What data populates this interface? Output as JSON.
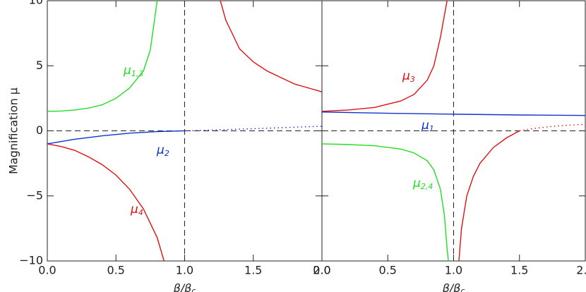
{
  "chart_data": [
    {
      "type": "line",
      "ylabel": "Magnification μ",
      "xlabel": "β/β",
      "xlabel_sub": "c",
      "xlim": [
        0,
        2
      ],
      "ylim": [
        -10,
        10
      ],
      "xticks": [
        {
          "value": 0,
          "label": "0.0"
        },
        {
          "value": 0.5,
          "label": "0.5"
        },
        {
          "value": 1,
          "label": "1.0"
        },
        {
          "value": 1.5,
          "label": "1.5"
        },
        {
          "value": 2,
          "label": "2.0"
        }
      ],
      "yticks": [
        {
          "value": -10,
          "label": "−10"
        },
        {
          "value": -5,
          "label": "−5"
        },
        0,
        5,
        10
      ],
      "reference_lines": {
        "x": 1,
        "y": 0
      },
      "series": [
        {
          "color": "#22dd22",
          "dash": "solid",
          "x": [
            0,
            0.1,
            0.2,
            0.3,
            0.4,
            0.5,
            0.6,
            0.7,
            0.75,
            0.8
          ],
          "values": [
            1.5,
            1.52,
            1.6,
            1.75,
            2.0,
            2.5,
            3.3,
            4.6,
            6.2,
            10
          ]
        },
        {
          "color": "#dd1111",
          "dash": "solid",
          "x": [
            0,
            0.1,
            0.2,
            0.3,
            0.4,
            0.5,
            0.6,
            0.7,
            0.8,
            0.85
          ],
          "values": [
            -1,
            -1.2,
            -1.5,
            -2.0,
            -2.6,
            -3.4,
            -4.5,
            -6.0,
            -8.2,
            -10
          ]
        },
        {
          "color": "#dd1111",
          "dash": "solid",
          "x": [
            1.26,
            1.3,
            1.4,
            1.5,
            1.6,
            1.7,
            1.8,
            1.9,
            2.0
          ],
          "values": [
            10,
            8.5,
            6.3,
            5.3,
            4.6,
            4.1,
            3.6,
            3.3,
            3.0
          ]
        },
        {
          "color": "#1133cc",
          "dash": "solid",
          "x": [
            0,
            0.2,
            0.4,
            0.6,
            0.8,
            1.0
          ],
          "values": [
            -1,
            -0.65,
            -0.38,
            -0.18,
            -0.06,
            0
          ]
        },
        {
          "color": "#1133cc",
          "dash": "dotted",
          "x": [
            1.0,
            1.2,
            1.4,
            1.6,
            1.8,
            2.0
          ],
          "values": [
            0,
            0.06,
            0.13,
            0.2,
            0.28,
            0.35
          ]
        }
      ],
      "annotations": [
        {
          "text": "μ",
          "sub": "1,3",
          "color": "#22dd22"
        },
        {
          "text": "μ",
          "sub": "2",
          "color": "#1133cc"
        },
        {
          "text": "μ",
          "sub": "4",
          "color": "#dd1111"
        }
      ]
    },
    {
      "type": "line",
      "xlabel": "β/β",
      "xlabel_sub": "c",
      "xlim": [
        0,
        2
      ],
      "ylim": [
        -10,
        10
      ],
      "xticks": [
        {
          "value": 0,
          "label": "0.0"
        },
        {
          "value": 0.5,
          "label": "0.5"
        },
        {
          "value": 1,
          "label": "1.0"
        },
        {
          "value": 1.5,
          "label": "1.5"
        },
        {
          "value": 2,
          "label": "2.0"
        }
      ],
      "yticks": [
        -10,
        -5,
        0,
        5,
        10
      ],
      "reference_lines": {
        "x": 1,
        "y": 0
      },
      "series": [
        {
          "color": "#dd1111",
          "dash": "solid",
          "x": [
            0,
            0.2,
            0.4,
            0.6,
            0.7,
            0.8,
            0.85,
            0.9,
            0.95
          ],
          "values": [
            1.5,
            1.6,
            1.8,
            2.3,
            2.8,
            3.9,
            5,
            7.2,
            10
          ]
        },
        {
          "color": "#1133cc",
          "dash": "solid",
          "x": [
            0,
            0.5,
            1,
            1.5,
            2
          ],
          "values": [
            1.45,
            1.35,
            1.28,
            1.22,
            1.18
          ]
        },
        {
          "color": "#22dd22",
          "dash": "solid",
          "x": [
            0,
            0.2,
            0.4,
            0.6,
            0.7,
            0.8,
            0.85,
            0.9,
            0.93,
            0.95,
            0.96
          ],
          "values": [
            -1,
            -1.05,
            -1.15,
            -1.4,
            -1.7,
            -2.3,
            -3.0,
            -4.5,
            -6.5,
            -9,
            -10
          ]
        },
        {
          "color": "#dd1111",
          "dash": "solid",
          "x": [
            1.04,
            1.06,
            1.1,
            1.15,
            1.2,
            1.3,
            1.4,
            1.5
          ],
          "values": [
            -10,
            -7.5,
            -5,
            -3.5,
            -2.5,
            -1.3,
            -0.55,
            0
          ]
        },
        {
          "color": "#dd1111",
          "dash": "dotted",
          "x": [
            1.5,
            1.6,
            1.7,
            1.8,
            1.9,
            2.0
          ],
          "values": [
            0,
            0.17,
            0.29,
            0.38,
            0.45,
            0.5
          ]
        }
      ],
      "annotations": [
        {
          "text": "μ",
          "sub": "3",
          "color": "#dd1111"
        },
        {
          "text": "μ",
          "sub": "1",
          "color": "#1133cc"
        },
        {
          "text": "μ",
          "sub": "2,4",
          "color": "#22dd22"
        }
      ]
    }
  ]
}
